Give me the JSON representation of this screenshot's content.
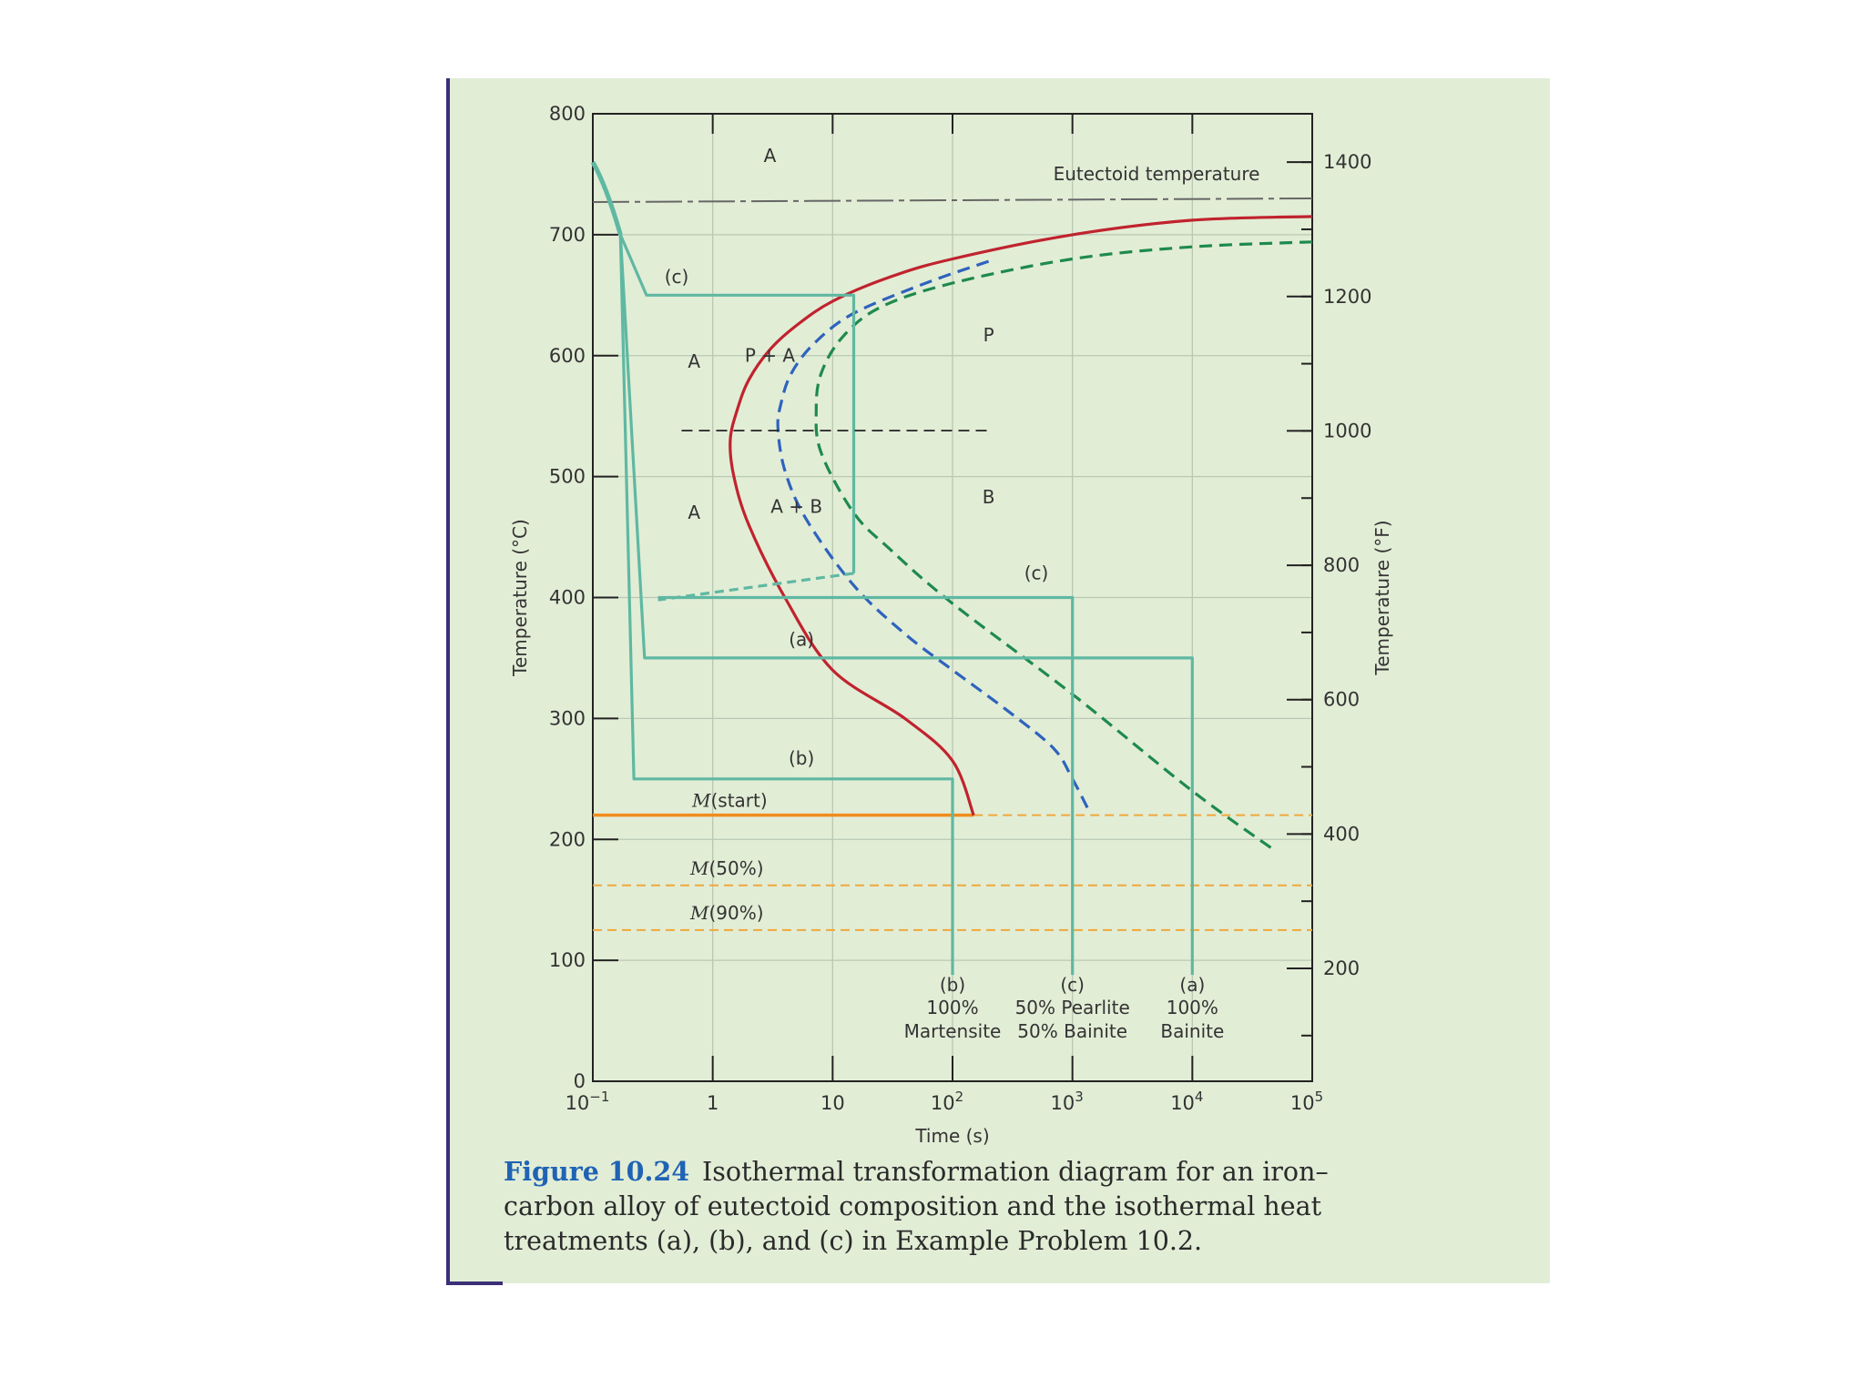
{
  "chart_data": {
    "type": "line",
    "title": "",
    "xlabel": "Time (s)",
    "ylabel": "Temperature (°C)",
    "y2label": "Temperature (°F)",
    "x_scale": "log",
    "xlim": [
      0.1,
      100000
    ],
    "ylim": [
      0,
      800
    ],
    "y2lim_F": [
      32,
      1472
    ],
    "x_ticks": [
      {
        "value": 0.1,
        "base": "10",
        "exp": "−1"
      },
      {
        "value": 1,
        "base": "1",
        "exp": ""
      },
      {
        "value": 10,
        "base": "10",
        "exp": ""
      },
      {
        "value": 100,
        "base": "10",
        "exp": "2"
      },
      {
        "value": 1000,
        "base": "10",
        "exp": "3"
      },
      {
        "value": 10000,
        "base": "10",
        "exp": "4"
      },
      {
        "value": 100000,
        "base": "10",
        "exp": "5"
      }
    ],
    "y_ticks": [
      0,
      100,
      200,
      300,
      400,
      500,
      600,
      700,
      800
    ],
    "y2_ticks": [
      200,
      400,
      600,
      800,
      1000,
      1200,
      1400
    ],
    "grid": true,
    "colors": {
      "grid": "#b9c8b4",
      "axis": "#222222",
      "start_curve": "#c0232e",
      "fifty_curve": "#2e63bd",
      "finish_curve": "#1e8a4c",
      "treatment": "#5fb8a2",
      "mstart": "#f08c1e",
      "martensite_dashed": "#f0a83c",
      "eutectoid": "#666666"
    },
    "eutectoid_temperature": {
      "label": "Eutectoid temperature",
      "y": 727
    },
    "series": [
      {
        "key": "start",
        "style": "solid",
        "points": [
          [
            100000,
            715
          ],
          [
            10000,
            712
          ],
          [
            1000,
            700
          ],
          [
            100,
            680
          ],
          [
            30,
            665
          ],
          [
            10,
            645
          ],
          [
            5,
            625
          ],
          [
            3,
            605
          ],
          [
            2,
            580
          ],
          [
            1.6,
            555
          ],
          [
            1.4,
            530
          ],
          [
            1.5,
            500
          ],
          [
            2,
            460
          ],
          [
            4,
            400
          ],
          [
            10,
            340
          ],
          [
            40,
            300
          ],
          [
            100,
            265
          ],
          [
            150,
            220
          ]
        ]
      },
      {
        "key": "fifty",
        "style": "dashed",
        "points": [
          [
            200,
            678
          ],
          [
            60,
            660
          ],
          [
            15,
            635
          ],
          [
            7,
            610
          ],
          [
            4.5,
            585
          ],
          [
            3.7,
            560
          ],
          [
            3.5,
            540
          ],
          [
            4,
            505
          ],
          [
            6,
            465
          ],
          [
            15,
            410
          ],
          [
            40,
            370
          ],
          [
            100,
            340
          ],
          [
            300,
            305
          ],
          [
            700,
            275
          ],
          [
            1000,
            250
          ],
          [
            1400,
            222
          ]
        ]
      },
      {
        "key": "finish",
        "style": "dashed",
        "points": [
          [
            100000,
            694
          ],
          [
            10000,
            690
          ],
          [
            1000,
            680
          ],
          [
            100,
            660
          ],
          [
            25,
            640
          ],
          [
            12,
            615
          ],
          [
            8,
            585
          ],
          [
            7.3,
            555
          ],
          [
            8,
            520
          ],
          [
            15,
            470
          ],
          [
            30,
            440
          ],
          [
            100,
            395
          ],
          [
            1000,
            320
          ],
          [
            10000,
            240
          ],
          [
            50000,
            190
          ]
        ]
      }
    ],
    "cooling_paths": [
      {
        "label": "(a)",
        "temp": 350,
        "end_time": 10000,
        "final_label": "(a)\n100%\nBainite"
      },
      {
        "label": "(b)",
        "temp": 250,
        "end_time": 100,
        "final_label": "(b)\n100%\nMartensite"
      },
      {
        "label": "(c)",
        "temp": 650,
        "end_time": 15,
        "second_temp": 400,
        "second_end_time": 1000,
        "final_label": "(c)\n50% Pearlite\n50% Bainite"
      }
    ],
    "horizontal_lines": [
      {
        "label": "M(start)",
        "y": 220,
        "style": "solid-then-dashed"
      },
      {
        "label": "M(50%)",
        "y": 162,
        "style": "dashed"
      },
      {
        "label": "M(90%)",
        "y": 125,
        "style": "dashed"
      }
    ],
    "regions": [
      {
        "label": "A",
        "x": 3,
        "y": 760
      },
      {
        "label": "A",
        "x": 0.7,
        "y": 590
      },
      {
        "label": "P + A",
        "x": 3,
        "y": 595
      },
      {
        "label": "P",
        "x": 200,
        "y": 612
      },
      {
        "label": "A",
        "x": 0.7,
        "y": 465
      },
      {
        "label": "A + B",
        "x": 5,
        "y": 470
      },
      {
        "label": "B",
        "x": 200,
        "y": 478
      },
      {
        "label": "(c)",
        "x": 0.5,
        "y": 660
      },
      {
        "label": "(c)",
        "x": 500,
        "y": 415
      },
      {
        "label": "(a)",
        "x": 5.5,
        "y": 360
      },
      {
        "label": "(b)",
        "x": 5.5,
        "y": 262
      }
    ]
  },
  "labels": {
    "xlabel": "Time (s)",
    "ylabel": "Temperature (°C)",
    "y2label": "Temperature (°F)",
    "eutectoid": "Eutectoid temperature",
    "mstart_M": "M",
    "mstart_rest": "(start)",
    "m50_M": "M",
    "m50_rest": "(50%)",
    "m90_M": "M",
    "m90_rest": "(90%)",
    "result_b_1": "(b)",
    "result_b_2": "100%",
    "result_b_3": "Martensite",
    "result_c_1": "(c)",
    "result_c_2": "50% Pearlite",
    "result_c_3": "50% Bainite",
    "result_a_1": "(a)",
    "result_a_2": "100%",
    "result_a_3": "Bainite"
  },
  "caption": {
    "figure_label": "Figure 10.24",
    "text": "Isothermal transformation diagram for an iron–carbon alloy of eutectoid composition and the isothermal heat treatments (a), (b), and (c) in Example Problem 10.2."
  }
}
